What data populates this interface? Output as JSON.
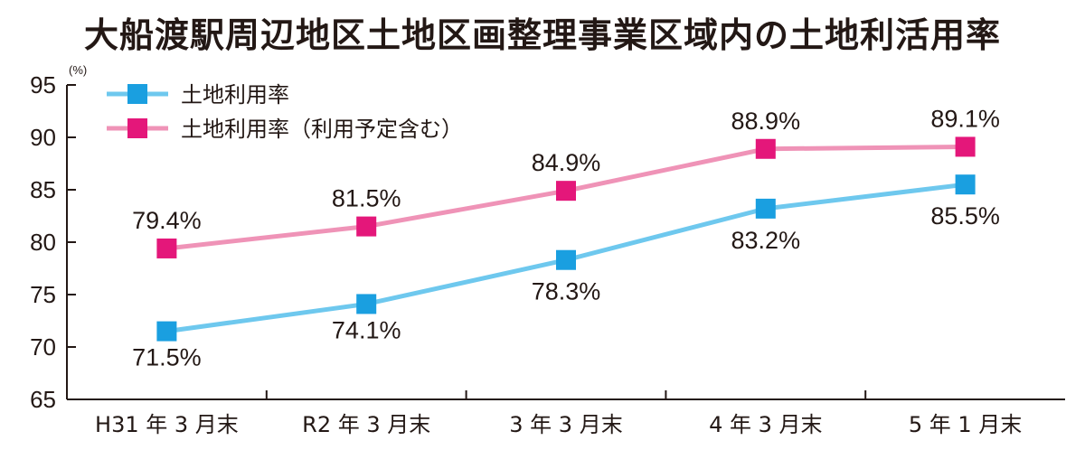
{
  "chart_data": {
    "type": "line",
    "title": "大船渡駅周辺地区土地区画整理事業区域内の土地利活用率",
    "unit": "(%)",
    "categories": [
      "H31 年 3 月末",
      "R2 年 3 月末",
      "3 年 3 月末",
      "4 年 3 月末",
      "5 年 1 月末"
    ],
    "ylim": [
      65,
      95
    ],
    "yticks": [
      "95",
      "90",
      "85",
      "80",
      "75",
      "70",
      "65"
    ],
    "grid": false,
    "legend_position": "top-left",
    "series": [
      {
        "name": "土地利用率",
        "color": "#6ec8ee",
        "marker_color": "#1a9fe0",
        "values": [
          71.5,
          74.1,
          78.3,
          83.2,
          85.5
        ],
        "labels": [
          "71.5%",
          "74.1%",
          "78.3%",
          "83.2%",
          "85.5%"
        ]
      },
      {
        "name": "土地利用率（利用予定含む）",
        "color": "#ef93b7",
        "marker_color": "#e4177a",
        "values": [
          79.4,
          81.5,
          84.9,
          88.9,
          89.1
        ],
        "labels": [
          "79.4%",
          "81.5%",
          "84.9%",
          "88.9%",
          "89.1%"
        ]
      }
    ]
  }
}
